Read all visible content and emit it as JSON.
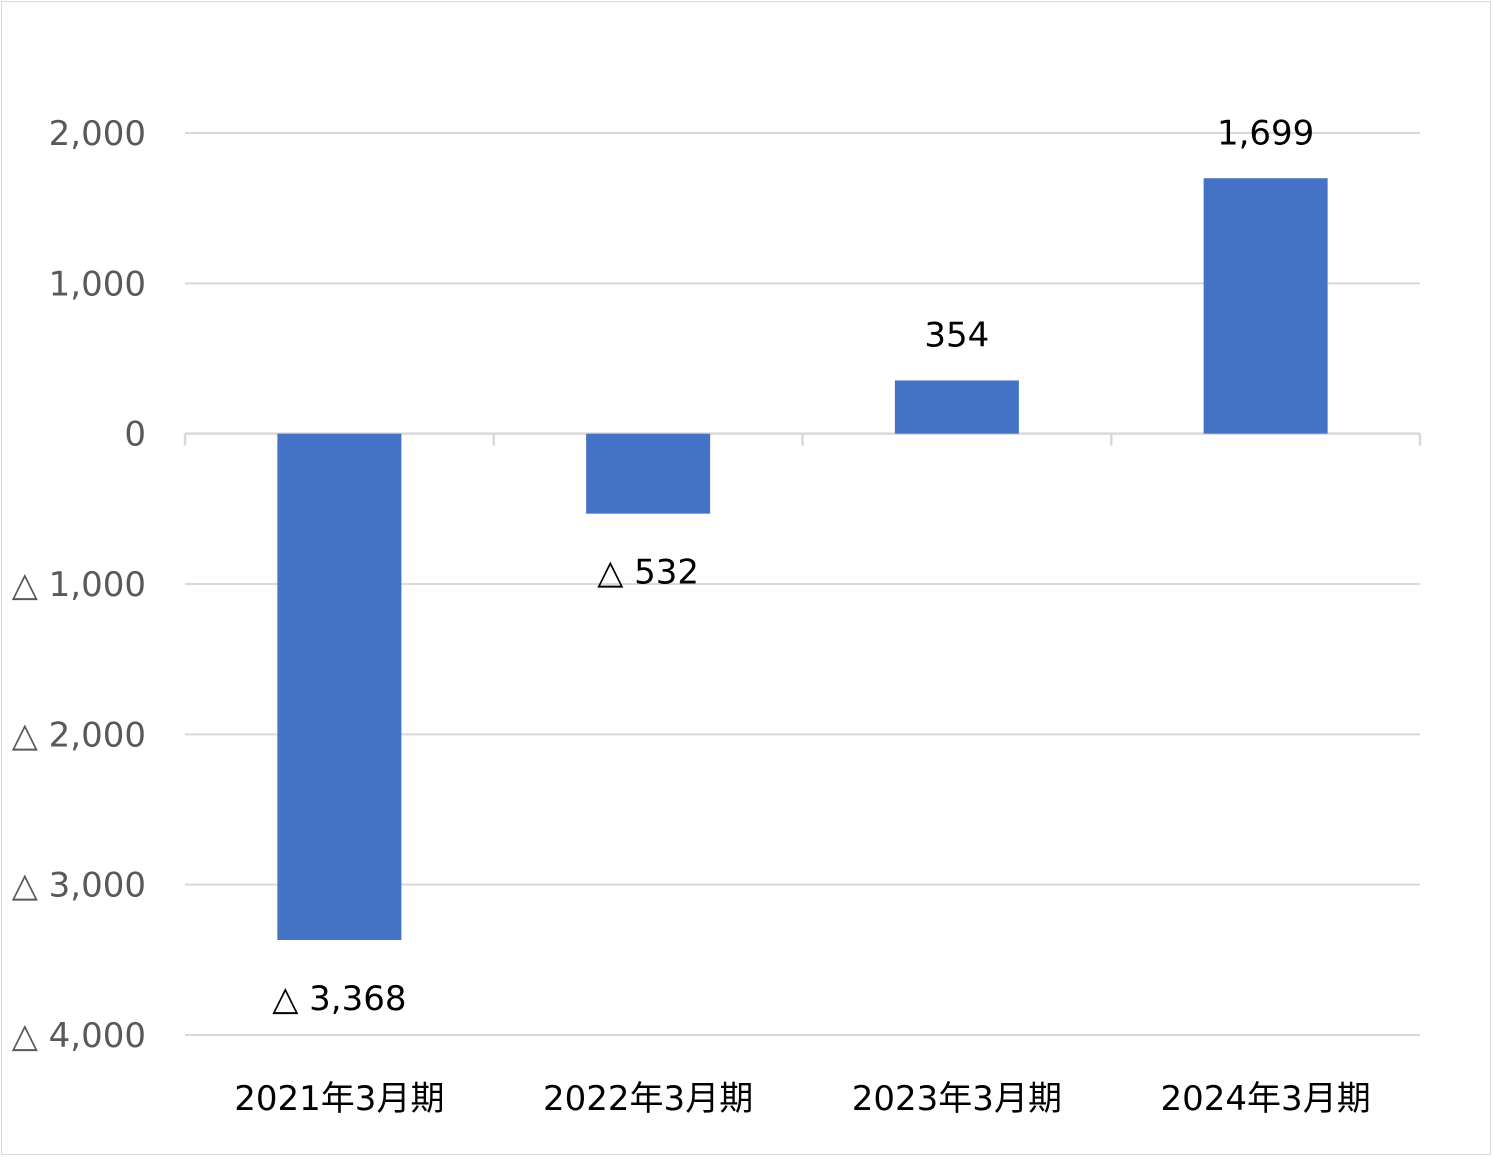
{
  "chart_data": {
    "type": "bar",
    "title": "",
    "xlabel": "",
    "ylabel": "",
    "categories": [
      "2021年3月期",
      "2022年3月期",
      "2023年3月期",
      "2024年3月期"
    ],
    "values": [
      -3368,
      -532,
      354,
      1699
    ],
    "data_labels": [
      "△ 3,368",
      "△ 532",
      "354",
      "1,699"
    ],
    "ylim": [
      -4000,
      2000
    ],
    "y_ticks": [
      2000,
      1000,
      0,
      -1000,
      -2000,
      -3000,
      -4000
    ],
    "y_tick_labels": [
      "2,000",
      "1,000",
      "0",
      "△ 1,000",
      "△ 2,000",
      "△ 3,000",
      "△ 4,000"
    ],
    "grid": true,
    "legend": "none",
    "colors": {
      "bar": "#4472c4",
      "grid": "#d9d9d9",
      "axis": "#d9d9d9",
      "tick_text": "#595959",
      "label_text": "#000000"
    }
  }
}
